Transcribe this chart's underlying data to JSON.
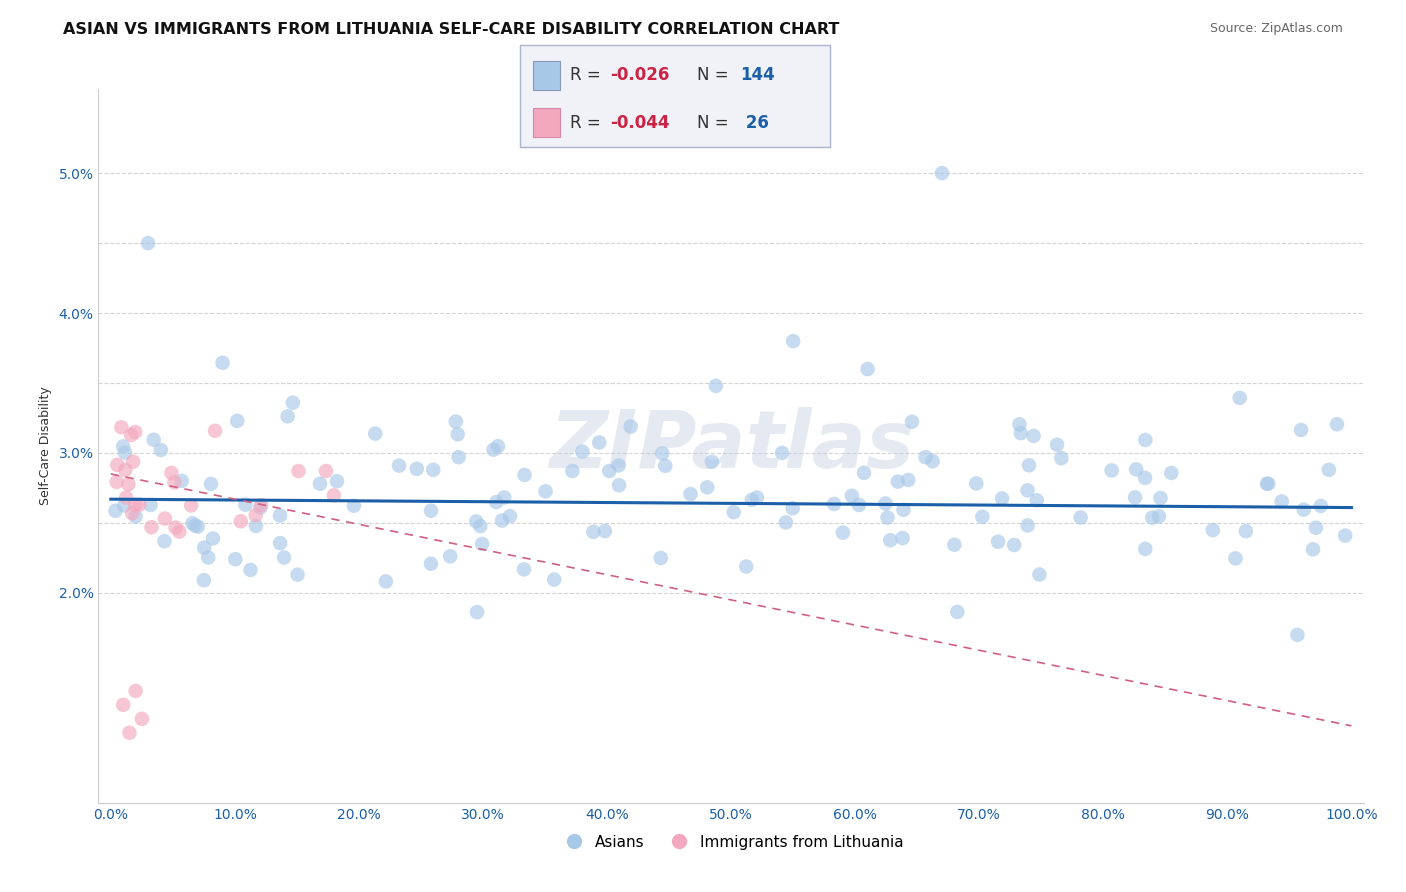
{
  "title": "ASIAN VS IMMIGRANTS FROM LITHUANIA SELF-CARE DISABILITY CORRELATION CHART",
  "source": "Source: ZipAtlas.com",
  "ylabel": "Self-Care Disability",
  "xlim": [
    -0.01,
    1.01
  ],
  "ylim": [
    0.005,
    0.056
  ],
  "xticklabels": [
    "0.0%",
    "10.0%",
    "20.0%",
    "30.0%",
    "40.0%",
    "50.0%",
    "60.0%",
    "70.0%",
    "80.0%",
    "90.0%",
    "100.0%"
  ],
  "yticklabels": [
    "2.0%",
    "",
    "3.0%",
    "",
    "4.0%",
    "",
    "5.0%"
  ],
  "ytick_positions": [
    0.02,
    0.025,
    0.03,
    0.035,
    0.04,
    0.045,
    0.05
  ],
  "blue_color": "#a8c8e8",
  "pink_color": "#f4a8be",
  "blue_line_color": "#1a5fa8",
  "pink_line_color": "#d06080",
  "grid_color": "#d0d0d0",
  "legend_box_color": "#e8e8f0",
  "legend_border_color": "#b0b8d0",
  "background_color": "#ffffff",
  "title_fontsize": 11.5,
  "source_fontsize": 9,
  "axis_label_fontsize": 9,
  "tick_fontsize": 10,
  "legend_fontsize": 12,
  "scatter_size": 110,
  "scatter_alpha": 0.65,
  "blue_regression_intercept": 0.0267,
  "blue_regression_slope": -0.0006,
  "pink_regression_intercept": 0.0285,
  "pink_regression_slope": -0.018
}
